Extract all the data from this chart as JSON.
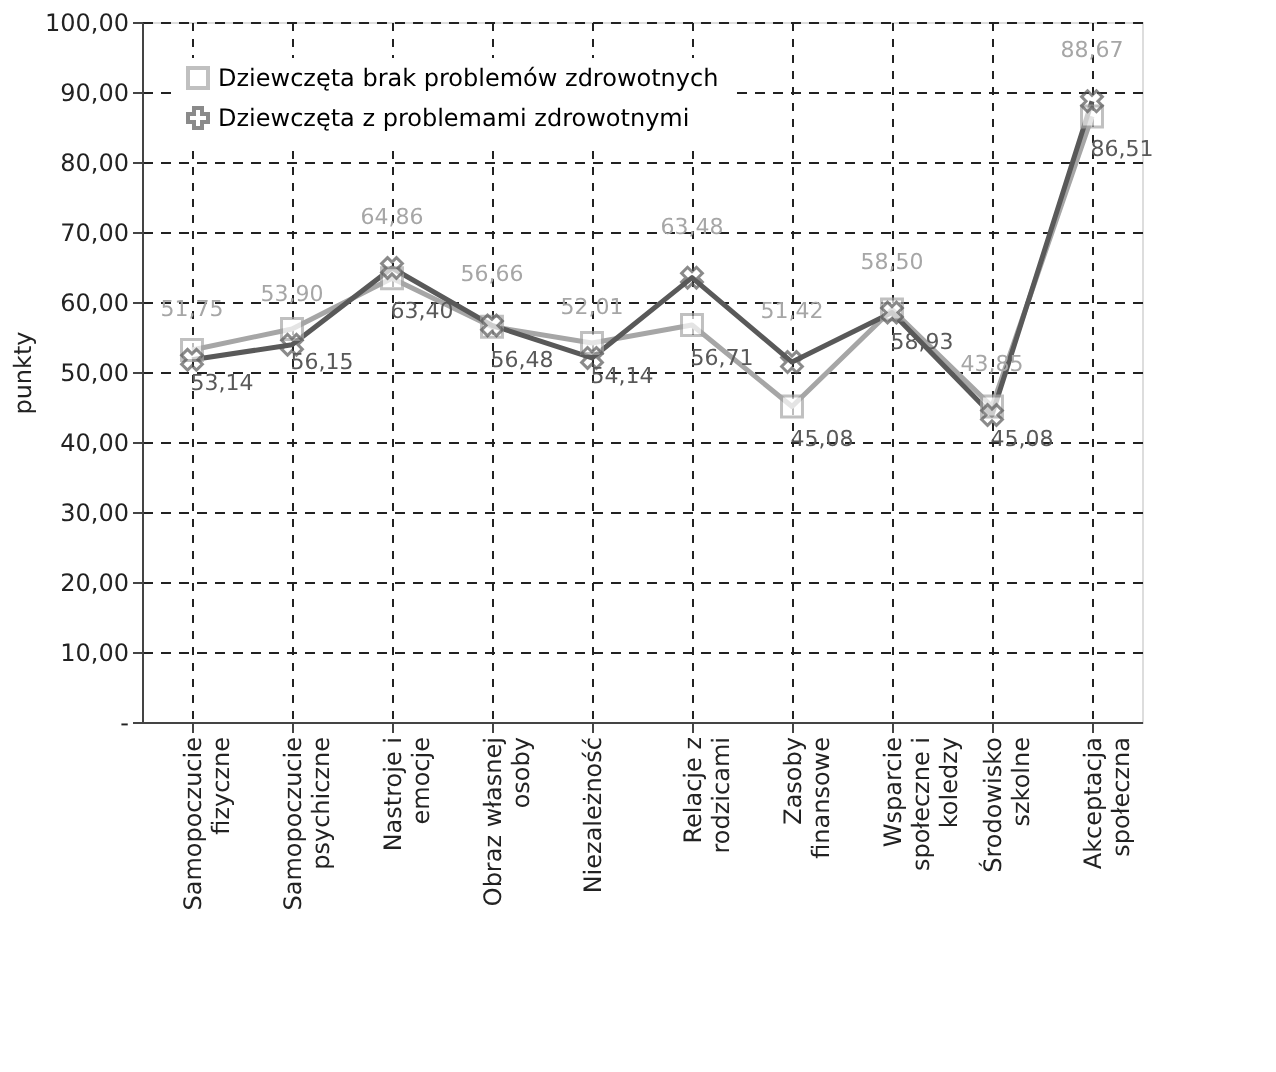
{
  "chart_data": {
    "type": "line",
    "ylabel": "punkty",
    "categories": [
      "Samopoczucie fizyczne",
      "Samopoczucie psychiczne",
      "Nastroje i emocje",
      "Obraz własnej osoby",
      "Niezależność",
      "Relacje z rodzicami",
      "Zasoby finansowe",
      "Wsparcie społeczne i koledzy",
      "Środowisko szkolne",
      "Akceptacja społeczna"
    ],
    "series": [
      {
        "name": "Dziewczęta  brak problemów zdrowotnych",
        "color": "#a6a6a6",
        "marker": "square",
        "values": [
          53.14,
          56.15,
          63.4,
          56.48,
          54.14,
          56.71,
          45.08,
          58.93,
          45.08,
          86.51
        ],
        "value_labels": [
          "53,14",
          "56,15",
          "63,40",
          "56,48",
          "54,14",
          "56,71",
          "45,08",
          "58,93",
          "45,08",
          "86,51"
        ]
      },
      {
        "name": "Dziewczęta z problemami zdrowotnymi",
        "color": "#595959",
        "marker": "cross",
        "values": [
          51.75,
          53.9,
          64.86,
          56.66,
          52.01,
          63.48,
          51.42,
          58.5,
          43.85,
          88.67
        ],
        "value_labels": [
          "51,75",
          "53,90",
          "64,86",
          "56,66",
          "52,01",
          "63,48",
          "51,42",
          "58,50",
          "43,85",
          "88,67"
        ]
      }
    ],
    "ylim": [
      0,
      100
    ],
    "yticks": [
      {
        "value": 0,
        "label": "-"
      },
      {
        "value": 10,
        "label": "10,00"
      },
      {
        "value": 20,
        "label": "20,00"
      },
      {
        "value": 30,
        "label": "30,00"
      },
      {
        "value": 40,
        "label": "40,00"
      },
      {
        "value": 50,
        "label": "50,00"
      },
      {
        "value": 60,
        "label": "60,00"
      },
      {
        "value": 70,
        "label": "70,00"
      },
      {
        "value": 80,
        "label": "80,00"
      },
      {
        "value": 90,
        "label": "90,00"
      },
      {
        "value": 100,
        "label": "100,00"
      }
    ],
    "grid": true,
    "legend": "top left",
    "line_style": "solid"
  }
}
